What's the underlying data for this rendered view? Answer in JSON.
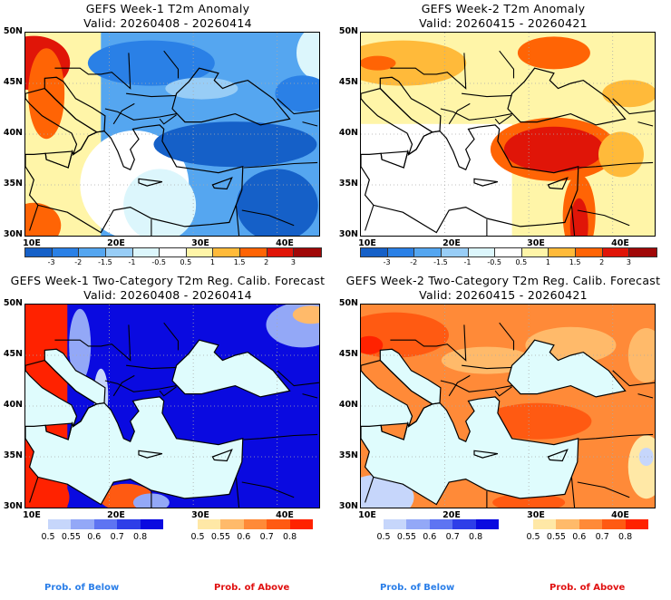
{
  "panels": [
    {
      "id": "week1-anomaly",
      "title": "GEFS Week-1 T2m Anomaly",
      "valid": "Valid: 20260408 - 20260414",
      "kind": "anomaly"
    },
    {
      "id": "week2-anomaly",
      "title": "GEFS Week-2 T2m Anomaly",
      "valid": "Valid: 20260415 - 20260421",
      "kind": "anomaly"
    },
    {
      "id": "week1-prob",
      "title": "GEFS Week-1 Two-Category T2m Reg. Calib. Forecast",
      "valid": "Valid: 20260408 - 20260414",
      "kind": "prob"
    },
    {
      "id": "week2-prob",
      "title": "GEFS Week-2 Two-Category T2m Reg. Calib. Forecast",
      "valid": "Valid: 20260415 - 20260421",
      "kind": "prob"
    }
  ],
  "axes": {
    "lat_labels": [
      "50N",
      "45N",
      "40N",
      "35N",
      "30N"
    ],
    "lon_labels": [
      "10E",
      "20E",
      "30E",
      "40E"
    ]
  },
  "anomaly_colorbar": {
    "colors": [
      "#1560c8",
      "#2a80e6",
      "#55a6f0",
      "#98cdf6",
      "#dcf6fc",
      "#ffffff",
      "#fff5a8",
      "#ffba3a",
      "#ff6405",
      "#e01508",
      "#a00808"
    ],
    "labels": [
      "-3",
      "-2",
      "-1.5",
      "-1",
      "-0.5",
      "0.5",
      "1",
      "1.5",
      "2",
      "3"
    ]
  },
  "prob_colorbars": {
    "below": {
      "colors": [
        "#c6d6fb",
        "#93a8f7",
        "#5e74f2",
        "#2e3ee8",
        "#0a0ae0"
      ],
      "labels": [
        "0.5",
        "0.55",
        "0.6",
        "0.7",
        "0.8"
      ],
      "caption": "Prob. of Below",
      "caption_color": "#2a7ee8"
    },
    "above": {
      "colors": [
        "#ffe8a6",
        "#ffba6a",
        "#ff8a38",
        "#ff5a12",
        "#ff2200"
      ],
      "labels": [
        "0.5",
        "0.55",
        "0.6",
        "0.7",
        "0.8"
      ],
      "caption": "Prob. of Above",
      "caption_color": "#e01010"
    }
  },
  "colors": {
    "sea_fill": "#dffcfd",
    "border": "#000000"
  }
}
